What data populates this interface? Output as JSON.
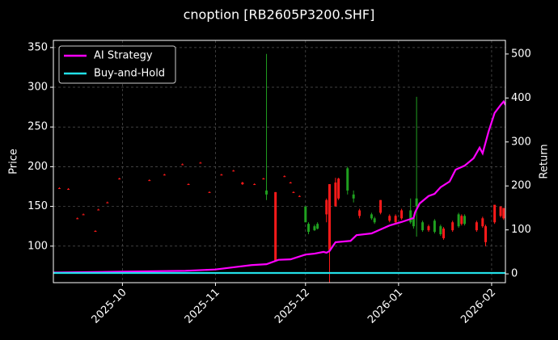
{
  "chart_data": {
    "type": "candlestick",
    "title": "cnoption [RB2605P3200.SHF]",
    "ylabel": "Price",
    "y2label": "Return",
    "up_color": "#ff1a1a",
    "down_color": "#1fa01f",
    "grid": true,
    "legend": "upper left",
    "x": [
      2,
      5,
      8,
      10,
      14,
      15,
      18,
      22,
      32,
      37,
      43,
      45,
      49,
      52,
      56,
      60,
      63,
      67,
      70,
      71,
      74,
      77,
      79,
      80,
      82,
      84,
      85,
      87,
      88,
      91,
      92,
      94,
      95,
      98,
      100,
      102,
      106,
      107,
      109,
      112,
      114,
      116,
      119,
      120,
      121,
      123,
      125,
      127,
      129,
      130,
      133,
      135,
      136,
      137,
      141,
      143,
      144,
      147,
      149,
      150
    ],
    "open": [
      173,
      172,
      135,
      140,
      119,
      146,
      155,
      185,
      183,
      190,
      203,
      178,
      205,
      168,
      190,
      195,
      178,
      178,
      185,
      170,
      82,
      188,
      180,
      168,
      163,
      150,
      128,
      125,
      128,
      140,
      95,
      150,
      160,
      198,
      165,
      138,
      140,
      135,
      142,
      132,
      130,
      135,
      145,
      135,
      160,
      130,
      120,
      132,
      125,
      110,
      120,
      140,
      128,
      138,
      120,
      125,
      105,
      130,
      138,
      135
    ],
    "high": [
      174,
      173,
      136,
      141,
      120,
      147,
      156,
      186,
      184,
      191,
      204,
      179,
      206,
      169,
      191,
      196,
      181,
      179,
      186,
      342,
      168,
      189,
      181,
      169,
      164,
      150,
      130,
      127,
      130,
      160,
      178,
      186,
      186,
      200,
      170,
      147,
      142,
      137,
      158,
      140,
      140,
      147,
      160,
      137,
      288,
      132,
      127,
      134,
      127,
      124,
      132,
      142,
      140,
      140,
      132,
      137,
      127,
      152,
      150,
      148
    ],
    "low": [
      172,
      171,
      134,
      139,
      118,
      145,
      154,
      184,
      182,
      189,
      202,
      177,
      204,
      167,
      189,
      194,
      177,
      177,
      184,
      158,
      82,
      187,
      179,
      167,
      162,
      130,
      115,
      119,
      121,
      130,
      50,
      150,
      158,
      165,
      155,
      135,
      133,
      128,
      140,
      130,
      128,
      133,
      128,
      122,
      112,
      118,
      118,
      116,
      113,
      108,
      118,
      123,
      126,
      126,
      118,
      123,
      100,
      128,
      136,
      133
    ],
    "close": [
      173,
      172,
      135,
      140,
      119,
      146,
      155,
      185,
      183,
      190,
      203,
      178,
      205,
      168,
      190,
      195,
      180,
      178,
      185,
      165,
      168,
      188,
      180,
      168,
      163,
      130,
      118,
      120,
      122,
      158,
      178,
      180,
      185,
      170,
      160,
      145,
      135,
      130,
      158,
      138,
      138,
      145,
      130,
      125,
      150,
      120,
      125,
      118,
      115,
      122,
      130,
      125,
      138,
      128,
      130,
      135,
      125,
      152,
      150,
      148
    ],
    "series": [
      {
        "name": "AI Strategy",
        "color": "#ff00ff",
        "axis": "y2",
        "x": [
          0,
          23,
          44,
          54,
          60,
          66,
          71,
          75,
          79,
          84,
          87,
          90,
          91,
          92,
          94,
          99,
          101,
          106,
          109,
          112,
          116,
          120,
          120.5,
          122,
          125,
          127,
          129,
          132,
          134,
          137,
          140,
          142,
          143,
          145,
          147,
          149,
          150,
          150.6
        ],
        "values": [
          3,
          5,
          7,
          10,
          15,
          20,
          22,
          32,
          33,
          44,
          46,
          50,
          48,
          52,
          72,
          75,
          88,
          92,
          101,
          110,
          118,
          127,
          140,
          160,
          177,
          182,
          197,
          210,
          237,
          246,
          263,
          287,
          274,
          324,
          366,
          384,
          392,
          384
        ]
      },
      {
        "name": "Buy-and-Hold",
        "color": "#22e0e8",
        "axis": "y2",
        "x": [
          0,
          75,
          150.6
        ],
        "values": [
          2,
          2,
          2
        ]
      }
    ],
    "xlim": [
      0,
      150.6
    ],
    "xticks": [
      {
        "value": 23,
        "label": "2025-10"
      },
      {
        "value": 54,
        "label": "2025-11"
      },
      {
        "value": 84,
        "label": "2025-12"
      },
      {
        "value": 115,
        "label": "2026-01"
      },
      {
        "value": 146,
        "label": "2026-02"
      }
    ],
    "ylim": [
      54,
      359
    ],
    "yticks": [
      100,
      150,
      200,
      250,
      300,
      350
    ],
    "y2lim": [
      -20,
      531
    ],
    "y2ticks": [
      0,
      100,
      200,
      300,
      400,
      500
    ]
  }
}
